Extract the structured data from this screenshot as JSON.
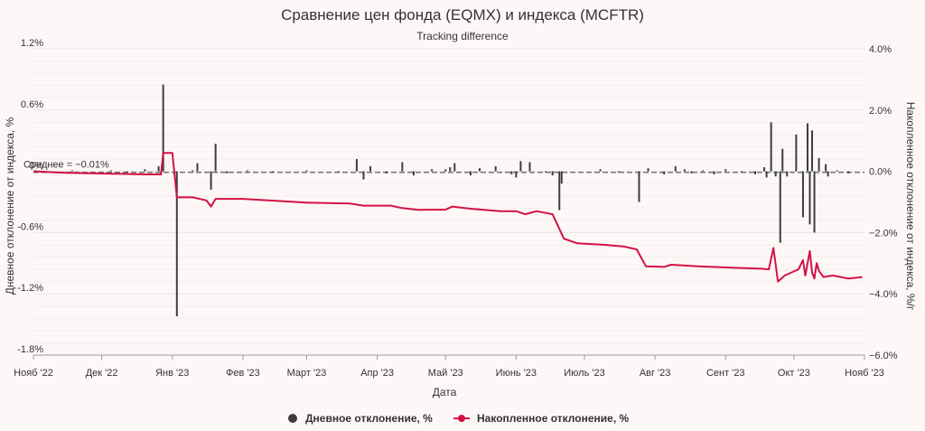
{
  "chart_data": {
    "type": "bar+line",
    "title": "Сравнение цен фонда (EQMX) и индекса (MCFTR)",
    "subtitle": "Tracking difference",
    "xlabel": "Дата",
    "ylabel_left": "Дневное отклонение от индекса, %",
    "ylabel_right": "Накопленное отклонение от индекса, %/г",
    "x_range": [
      "2022-11-01",
      "2023-11-01"
    ],
    "x_ticks": [
      {
        "date": "2022-11-01",
        "label": "Нояб '22"
      },
      {
        "date": "2022-12-01",
        "label": "Дек '22"
      },
      {
        "date": "2023-01-01",
        "label": "Янв '23"
      },
      {
        "date": "2023-02-01",
        "label": "Фев '23"
      },
      {
        "date": "2023-03-01",
        "label": "Март '23"
      },
      {
        "date": "2023-04-01",
        "label": "Апр '23"
      },
      {
        "date": "2023-05-01",
        "label": "Май '23"
      },
      {
        "date": "2023-06-01",
        "label": "Июнь '23"
      },
      {
        "date": "2023-07-01",
        "label": "Июль '23"
      },
      {
        "date": "2023-08-01",
        "label": "Авг '23"
      },
      {
        "date": "2023-09-01",
        "label": "Сент '23"
      },
      {
        "date": "2023-10-01",
        "label": "Окт '23"
      },
      {
        "date": "2023-11-01",
        "label": "Нояб '23"
      }
    ],
    "y_left": {
      "min": -1.8,
      "max": 1.2,
      "ticks": [
        "1.2%",
        "0.6%",
        "0%",
        "-0.6%",
        "-1.2%",
        "-1.8%"
      ]
    },
    "y_right": {
      "min": -6,
      "max": 4,
      "ticks": [
        "4.0%",
        "2.0%",
        "0.0%",
        "−2.0%",
        "−4.0%",
        "−6.0%"
      ]
    },
    "mean_line": {
      "value": -0.01,
      "label": "Среднее = −0.01%"
    },
    "legend_position": "bottom",
    "grid": true,
    "series": [
      {
        "name": "Дневное отклонение, %",
        "type": "bar",
        "axis": "left",
        "color": "#3d3d3d",
        "points": [
          [
            "2022-11-02",
            0.01
          ],
          [
            "2022-11-10",
            -0.01
          ],
          [
            "2022-11-18",
            0.01
          ],
          [
            "2022-12-05",
            0.01
          ],
          [
            "2022-12-12",
            -0.01
          ],
          [
            "2022-12-20",
            0.02
          ],
          [
            "2022-12-26",
            0.05
          ],
          [
            "2022-12-28",
            0.85
          ],
          [
            "2023-01-03",
            -1.42
          ],
          [
            "2023-01-10",
            0.01
          ],
          [
            "2023-01-12",
            0.08
          ],
          [
            "2023-01-18",
            -0.18
          ],
          [
            "2023-01-20",
            0.27
          ],
          [
            "2023-01-25",
            -0.02
          ],
          [
            "2023-02-03",
            0.01
          ],
          [
            "2023-02-14",
            -0.01
          ],
          [
            "2023-03-01",
            0.01
          ],
          [
            "2023-03-15",
            -0.01
          ],
          [
            "2023-03-23",
            0.12
          ],
          [
            "2023-03-26",
            -0.08
          ],
          [
            "2023-03-29",
            0.05
          ],
          [
            "2023-04-05",
            -0.02
          ],
          [
            "2023-04-12",
            0.09
          ],
          [
            "2023-04-17",
            -0.04
          ],
          [
            "2023-04-25",
            0.02
          ],
          [
            "2023-05-01",
            0.02
          ],
          [
            "2023-05-03",
            0.04
          ],
          [
            "2023-05-05",
            0.08
          ],
          [
            "2023-05-12",
            -0.04
          ],
          [
            "2023-05-16",
            0.03
          ],
          [
            "2023-05-23",
            0.05
          ],
          [
            "2023-05-30",
            -0.03
          ],
          [
            "2023-06-01",
            -0.06
          ],
          [
            "2023-06-03",
            0.1
          ],
          [
            "2023-06-07",
            0.09
          ],
          [
            "2023-06-14",
            -0.01
          ],
          [
            "2023-06-17",
            -0.04
          ],
          [
            "2023-06-20",
            -0.38
          ],
          [
            "2023-06-21",
            -0.12
          ],
          [
            "2023-07-08",
            0.02
          ],
          [
            "2023-07-16",
            -0.01
          ],
          [
            "2023-07-25",
            -0.3
          ],
          [
            "2023-07-29",
            0.03
          ],
          [
            "2023-08-05",
            -0.03
          ],
          [
            "2023-08-10",
            0.05
          ],
          [
            "2023-08-14",
            0.02
          ],
          [
            "2023-08-17",
            -0.02
          ],
          [
            "2023-08-22",
            0.01
          ],
          [
            "2023-08-27",
            -0.03
          ],
          [
            "2023-09-01",
            0.02
          ],
          [
            "2023-09-08",
            -0.01
          ],
          [
            "2023-09-14",
            -0.03
          ],
          [
            "2023-09-18",
            0.04
          ],
          [
            "2023-09-19",
            -0.06
          ],
          [
            "2023-09-21",
            0.48
          ],
          [
            "2023-09-23",
            -0.05
          ],
          [
            "2023-09-25",
            -0.7
          ],
          [
            "2023-09-26",
            0.22
          ],
          [
            "2023-09-28",
            -0.05
          ],
          [
            "2023-10-02",
            0.36
          ],
          [
            "2023-10-05",
            -0.45
          ],
          [
            "2023-10-07",
            0.47
          ],
          [
            "2023-10-08",
            -0.52
          ],
          [
            "2023-10-09",
            0.4
          ],
          [
            "2023-10-10",
            -0.6
          ],
          [
            "2023-10-12",
            0.13
          ],
          [
            "2023-10-15",
            0.07
          ],
          [
            "2023-10-16",
            -0.05
          ],
          [
            "2023-10-20",
            0.01
          ],
          [
            "2023-10-25",
            -0.02
          ]
        ]
      },
      {
        "name": "Накопленное отклонение, %",
        "type": "line",
        "axis": "right",
        "color": "#d31145",
        "points": [
          [
            "2022-11-01",
            0.0
          ],
          [
            "2022-11-15",
            -0.05
          ],
          [
            "2022-12-01",
            -0.07
          ],
          [
            "2022-12-20",
            -0.1
          ],
          [
            "2022-12-27",
            -0.1
          ],
          [
            "2022-12-28",
            0.6
          ],
          [
            "2023-01-01",
            0.6
          ],
          [
            "2023-01-03",
            -0.85
          ],
          [
            "2023-01-10",
            -0.85
          ],
          [
            "2023-01-16",
            -0.95
          ],
          [
            "2023-01-18",
            -1.15
          ],
          [
            "2023-01-20",
            -0.9
          ],
          [
            "2023-02-01",
            -0.9
          ],
          [
            "2023-03-01",
            -1.02
          ],
          [
            "2023-03-20",
            -1.05
          ],
          [
            "2023-03-26",
            -1.12
          ],
          [
            "2023-04-07",
            -1.12
          ],
          [
            "2023-04-12",
            -1.2
          ],
          [
            "2023-04-19",
            -1.26
          ],
          [
            "2023-05-01",
            -1.25
          ],
          [
            "2023-05-04",
            -1.15
          ],
          [
            "2023-05-12",
            -1.22
          ],
          [
            "2023-05-25",
            -1.3
          ],
          [
            "2023-06-01",
            -1.3
          ],
          [
            "2023-06-05",
            -1.4
          ],
          [
            "2023-06-10",
            -1.3
          ],
          [
            "2023-06-17",
            -1.4
          ],
          [
            "2023-06-22",
            -2.2
          ],
          [
            "2023-06-28",
            -2.35
          ],
          [
            "2023-07-10",
            -2.4
          ],
          [
            "2023-07-18",
            -2.45
          ],
          [
            "2023-07-24",
            -2.55
          ],
          [
            "2023-07-28",
            -3.1
          ],
          [
            "2023-08-05",
            -3.12
          ],
          [
            "2023-08-08",
            -3.05
          ],
          [
            "2023-08-20",
            -3.1
          ],
          [
            "2023-09-05",
            -3.15
          ],
          [
            "2023-09-17",
            -3.18
          ],
          [
            "2023-09-20",
            -3.2
          ],
          [
            "2023-09-22",
            -2.5
          ],
          [
            "2023-09-24",
            -3.6
          ],
          [
            "2023-09-27",
            -3.4
          ],
          [
            "2023-10-03",
            -3.2
          ],
          [
            "2023-10-05",
            -2.9
          ],
          [
            "2023-10-06",
            -3.4
          ],
          [
            "2023-10-08",
            -2.6
          ],
          [
            "2023-10-09",
            -3.3
          ],
          [
            "2023-10-10",
            -3.5
          ],
          [
            "2023-10-11",
            -3.0
          ],
          [
            "2023-10-12",
            -3.25
          ],
          [
            "2023-10-14",
            -3.45
          ],
          [
            "2023-10-18",
            -3.4
          ],
          [
            "2023-10-25",
            -3.5
          ],
          [
            "2023-10-31",
            -3.45
          ]
        ]
      }
    ]
  }
}
